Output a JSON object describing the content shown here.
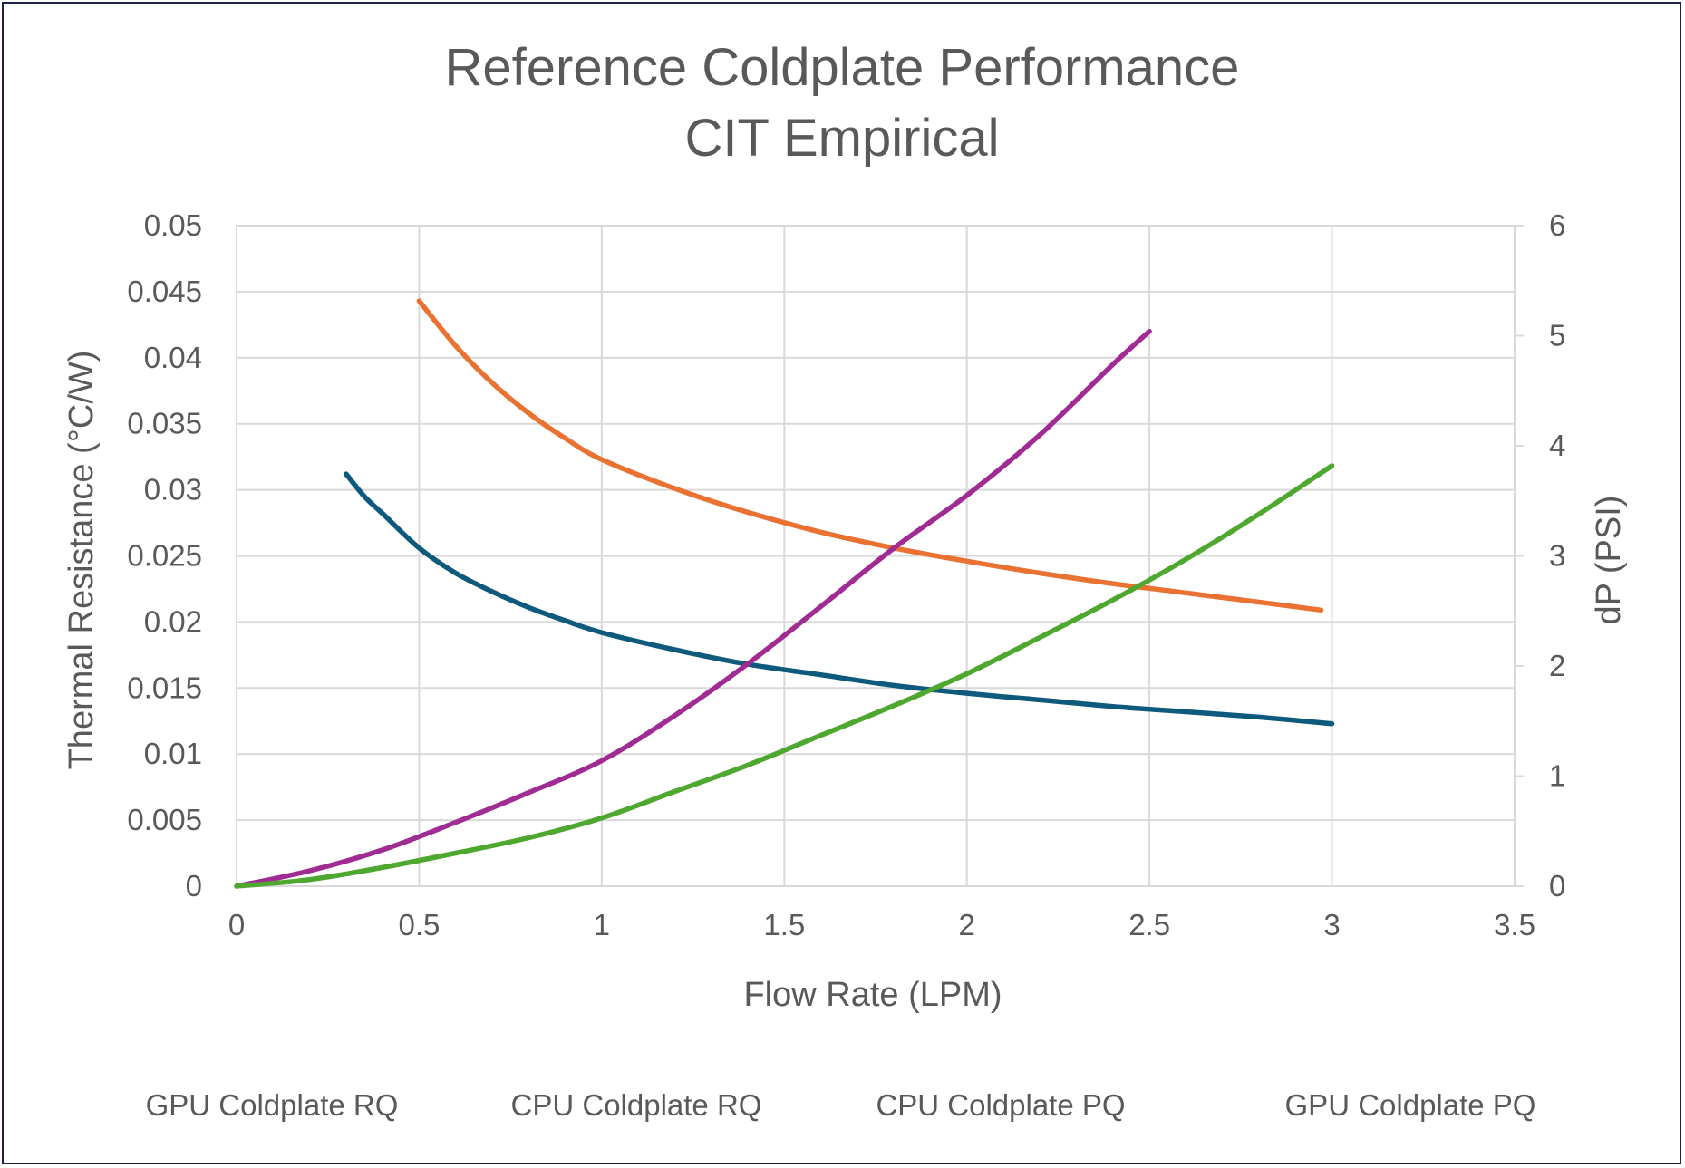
{
  "chart_data": {
    "type": "line",
    "title": [
      "Reference Coldplate Performance",
      "CIT Empirical"
    ],
    "xlabel": "Flow Rate (LPM)",
    "ylabel": "Thermal Resistance (°C/W)",
    "y2label": "dP (PSI)",
    "xlim": [
      0,
      3.5
    ],
    "ylim": [
      0,
      0.05
    ],
    "y2lim": [
      0,
      6
    ],
    "xticks": [
      "0",
      "0.5",
      "1",
      "1.5",
      "2",
      "2.5",
      "3",
      "3.5"
    ],
    "yticks": [
      "0",
      "0.005",
      "0.01",
      "0.015",
      "0.02",
      "0.025",
      "0.03",
      "0.035",
      "0.04",
      "0.045",
      "0.05"
    ],
    "y2ticks": [
      "0",
      "1",
      "2",
      "3",
      "4",
      "5",
      "6"
    ],
    "grid": true,
    "legend_position": "bottom",
    "series": [
      {
        "name": "GPU Coldplate RQ",
        "axis": "left",
        "color": "#0e5a7d",
        "x": [
          0.3,
          0.35,
          0.4,
          0.5,
          0.6,
          0.7,
          0.8,
          0.9,
          1.0,
          1.2,
          1.4,
          1.6,
          1.8,
          2.0,
          2.2,
          2.4,
          2.6,
          2.8,
          3.0
        ],
        "values": [
          0.0312,
          0.0295,
          0.0282,
          0.0256,
          0.0237,
          0.0223,
          0.0211,
          0.0201,
          0.0192,
          0.0179,
          0.0168,
          0.016,
          0.0152,
          0.0146,
          0.0141,
          0.0136,
          0.0132,
          0.0128,
          0.0123
        ]
      },
      {
        "name": "CPU Coldplate RQ",
        "axis": "left",
        "color": "#e97132",
        "x": [
          0.5,
          0.6,
          0.7,
          0.8,
          0.9,
          1.0,
          1.2,
          1.4,
          1.6,
          1.8,
          2.0,
          2.2,
          2.4,
          2.6,
          2.8,
          2.97
        ],
        "values": [
          0.0443,
          0.0409,
          0.0381,
          0.0358,
          0.0339,
          0.0323,
          0.0301,
          0.0283,
          0.0268,
          0.0256,
          0.0246,
          0.0237,
          0.0229,
          0.0222,
          0.0215,
          0.0209
        ]
      },
      {
        "name": "CPU Coldplate PQ",
        "axis": "right",
        "color": "#a02b93",
        "x": [
          0,
          0.2,
          0.4,
          0.6,
          0.8,
          1.0,
          1.2,
          1.4,
          1.6,
          1.8,
          2.0,
          2.2,
          2.4,
          2.5
        ],
        "values": [
          0,
          0.14,
          0.33,
          0.58,
          0.85,
          1.14,
          1.55,
          2.02,
          2.54,
          3.07,
          3.55,
          4.1,
          4.74,
          5.04
        ]
      },
      {
        "name": "GPU Coldplate PQ",
        "axis": "right",
        "color": "#4ea72e",
        "x": [
          0,
          0.2,
          0.4,
          0.6,
          0.8,
          1.0,
          1.2,
          1.4,
          1.6,
          1.8,
          2.0,
          2.2,
          2.4,
          2.6,
          2.8,
          3.0
        ],
        "values": [
          0,
          0.06,
          0.17,
          0.3,
          0.44,
          0.62,
          0.86,
          1.1,
          1.37,
          1.64,
          1.93,
          2.26,
          2.6,
          2.97,
          3.38,
          3.82
        ]
      }
    ]
  }
}
